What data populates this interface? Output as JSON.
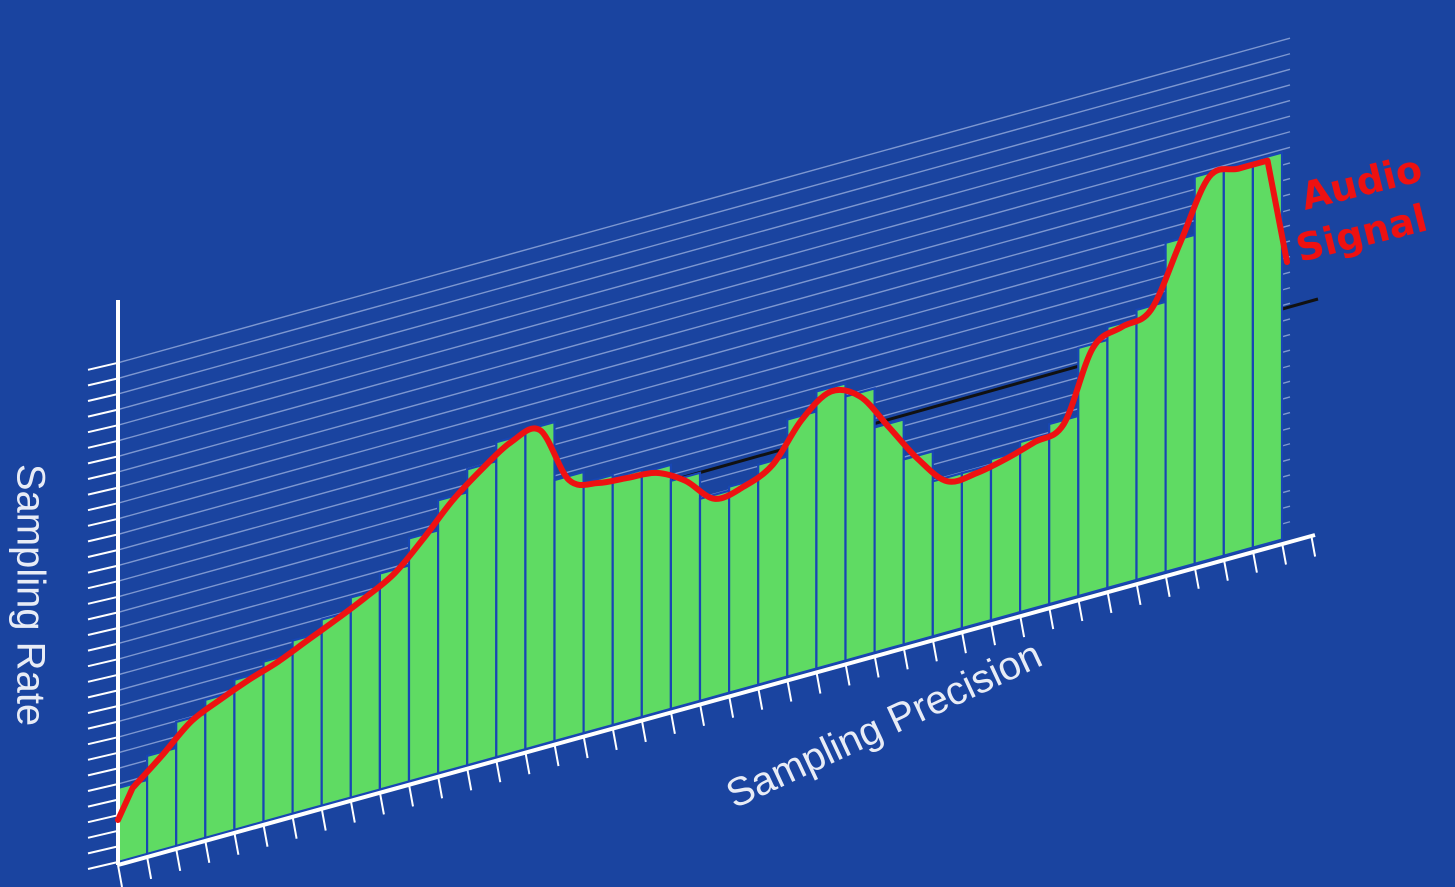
{
  "colors": {
    "background": "#1a44a0",
    "bar": "#5fdb63",
    "bar_gap": "#1846b4",
    "grid": "#9fb3e0",
    "axis": "#ffffff",
    "signal": "#ee1111",
    "reference_line": "#111111"
  },
  "labels": {
    "y_axis": "Sampling Rate",
    "x_axis": "Sampling Precision",
    "signal_line1": "Audio",
    "signal_line2": "Signal"
  },
  "samples": {
    "count": 40,
    "levels": [
      0.37,
      0.49,
      0.62,
      0.69,
      0.75,
      0.8,
      0.865,
      0.93,
      1.0,
      1.08,
      1.215,
      1.365,
      1.48,
      1.575,
      1.595,
      1.305,
      1.25,
      1.235,
      1.22,
      1.14,
      1.01,
      1.03,
      1.1,
      1.285,
      1.385,
      1.32,
      1.125,
      0.925,
      0.775,
      0.775,
      0.805,
      0.85,
      0.9,
      1.24,
      1.305,
      1.35,
      1.645,
      1.935,
      1.935,
      1.935
    ]
  }
}
